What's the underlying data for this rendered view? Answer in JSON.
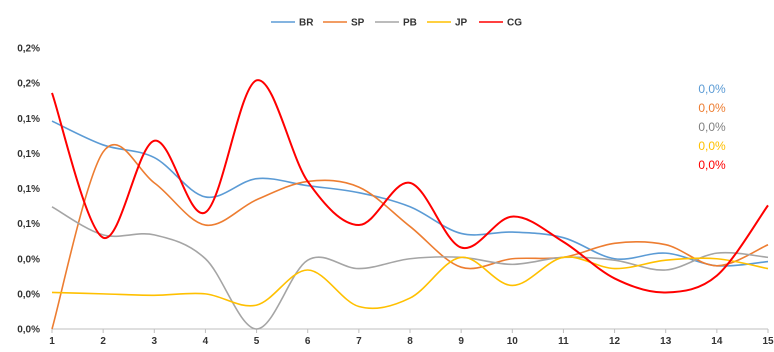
{
  "chart_data": {
    "type": "line",
    "title": "",
    "xlabel": "",
    "ylabel": "",
    "x": [
      1,
      2,
      3,
      4,
      5,
      6,
      7,
      8,
      9,
      10,
      11,
      12,
      13,
      14,
      15
    ],
    "x_tick_labels": [
      "1",
      "2",
      "3",
      "4",
      "5",
      "6",
      "7",
      "8",
      "9",
      "10",
      "11",
      "12",
      "13",
      "14",
      "15"
    ],
    "y_tick_labels": [
      "0,0%",
      "0,0%",
      "0,0%",
      "0,1%",
      "0,1%",
      "0,1%",
      "0,1%",
      "0,2%",
      "0,2%"
    ],
    "ylim": [
      0,
      0.2
    ],
    "grid": false,
    "legend_position": "top",
    "series": [
      {
        "name": "BR",
        "color": "#5b9bd5",
        "values": [
          0.148,
          0.131,
          0.122,
          0.094,
          0.107,
          0.102,
          0.097,
          0.087,
          0.068,
          0.069,
          0.065,
          0.05,
          0.054,
          0.045,
          0.048
        ]
      },
      {
        "name": "SP",
        "color": "#ed7d31",
        "values": [
          0.0,
          0.126,
          0.104,
          0.074,
          0.092,
          0.105,
          0.101,
          0.073,
          0.044,
          0.05,
          0.051,
          0.061,
          0.06,
          0.045,
          0.06
        ]
      },
      {
        "name": "PB",
        "color": "#a5a5a5",
        "values": [
          0.087,
          0.067,
          0.067,
          0.05,
          0.0,
          0.049,
          0.043,
          0.05,
          0.051,
          0.046,
          0.051,
          0.049,
          0.042,
          0.054,
          0.051
        ]
      },
      {
        "name": "JP",
        "color": "#ffc000",
        "values": [
          0.026,
          0.025,
          0.024,
          0.025,
          0.017,
          0.042,
          0.016,
          0.022,
          0.051,
          0.031,
          0.051,
          0.043,
          0.049,
          0.05,
          0.043
        ]
      },
      {
        "name": "CG",
        "color": "#ff0000",
        "values": [
          0.168,
          0.065,
          0.134,
          0.083,
          0.177,
          0.105,
          0.074,
          0.104,
          0.058,
          0.08,
          0.062,
          0.036,
          0.026,
          0.038,
          0.088
        ]
      }
    ],
    "annotations": [
      {
        "text": "0,0%",
        "color": "#5b9bd5"
      },
      {
        "text": "0,0%",
        "color": "#ed7d31"
      },
      {
        "text": "0,0%",
        "color": "#808080"
      },
      {
        "text": "0,0%",
        "color": "#ffc000"
      },
      {
        "text": "0,0%",
        "color": "#ff0000"
      }
    ]
  }
}
